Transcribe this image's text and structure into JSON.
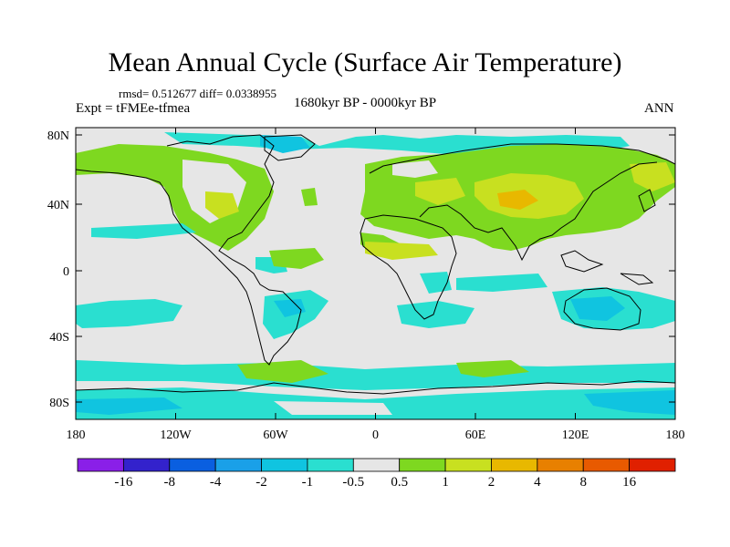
{
  "title": "Mean Annual Cycle (Surface Air Temperature)",
  "stats": "rmsd= 0.512677  diff= 0.0338955",
  "experiment": "Expt = tFMEe-tfmea",
  "period": "1680kyr BP - 0000kyr BP",
  "season": "ANN",
  "lat_ticks": [
    "80N",
    "40N",
    "0",
    "40S",
    "80S"
  ],
  "lon_ticks": [
    "180",
    "120W",
    "60W",
    "0",
    "60E",
    "120E",
    "180"
  ],
  "colorbar": {
    "labels": [
      "-16",
      "-8",
      "-4",
      "-2",
      "-1",
      "-0.5",
      "0.5",
      "1",
      "2",
      "4",
      "8",
      "16"
    ],
    "colors": [
      "#8a1fe8",
      "#3322cc",
      "#0a5fe0",
      "#1aa0e8",
      "#10c4e0",
      "#2adfd0",
      "#e6e6e6",
      "#7ed820",
      "#c8e020",
      "#e8b800",
      "#e88000",
      "#e85a00",
      "#e02000"
    ]
  }
}
